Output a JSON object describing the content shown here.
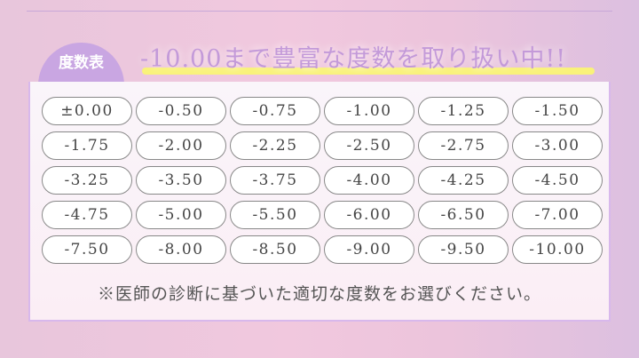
{
  "badge": "度数表",
  "title": {
    "prefix": "-10.00",
    "suffix": "まで豊富な度数を取り扱い中!!"
  },
  "powers": [
    "±0.00",
    "-0.50",
    "-0.75",
    "-1.00",
    "-1.25",
    "-1.50",
    "-1.75",
    "-2.00",
    "-2.25",
    "-2.50",
    "-2.75",
    "-3.00",
    "-3.25",
    "-3.50",
    "-3.75",
    "-4.00",
    "-4.25",
    "-4.50",
    "-4.75",
    "-5.00",
    "-5.50",
    "-6.00",
    "-6.50",
    "-7.00",
    "-7.50",
    "-8.00",
    "-8.50",
    "-9.00",
    "-9.50",
    "-10.00"
  ],
  "note": "※医師の診断に基づいた適切な度数をお選びください。",
  "colors": {
    "accent": "#c39ad9",
    "highlight": "#f9f27a"
  }
}
